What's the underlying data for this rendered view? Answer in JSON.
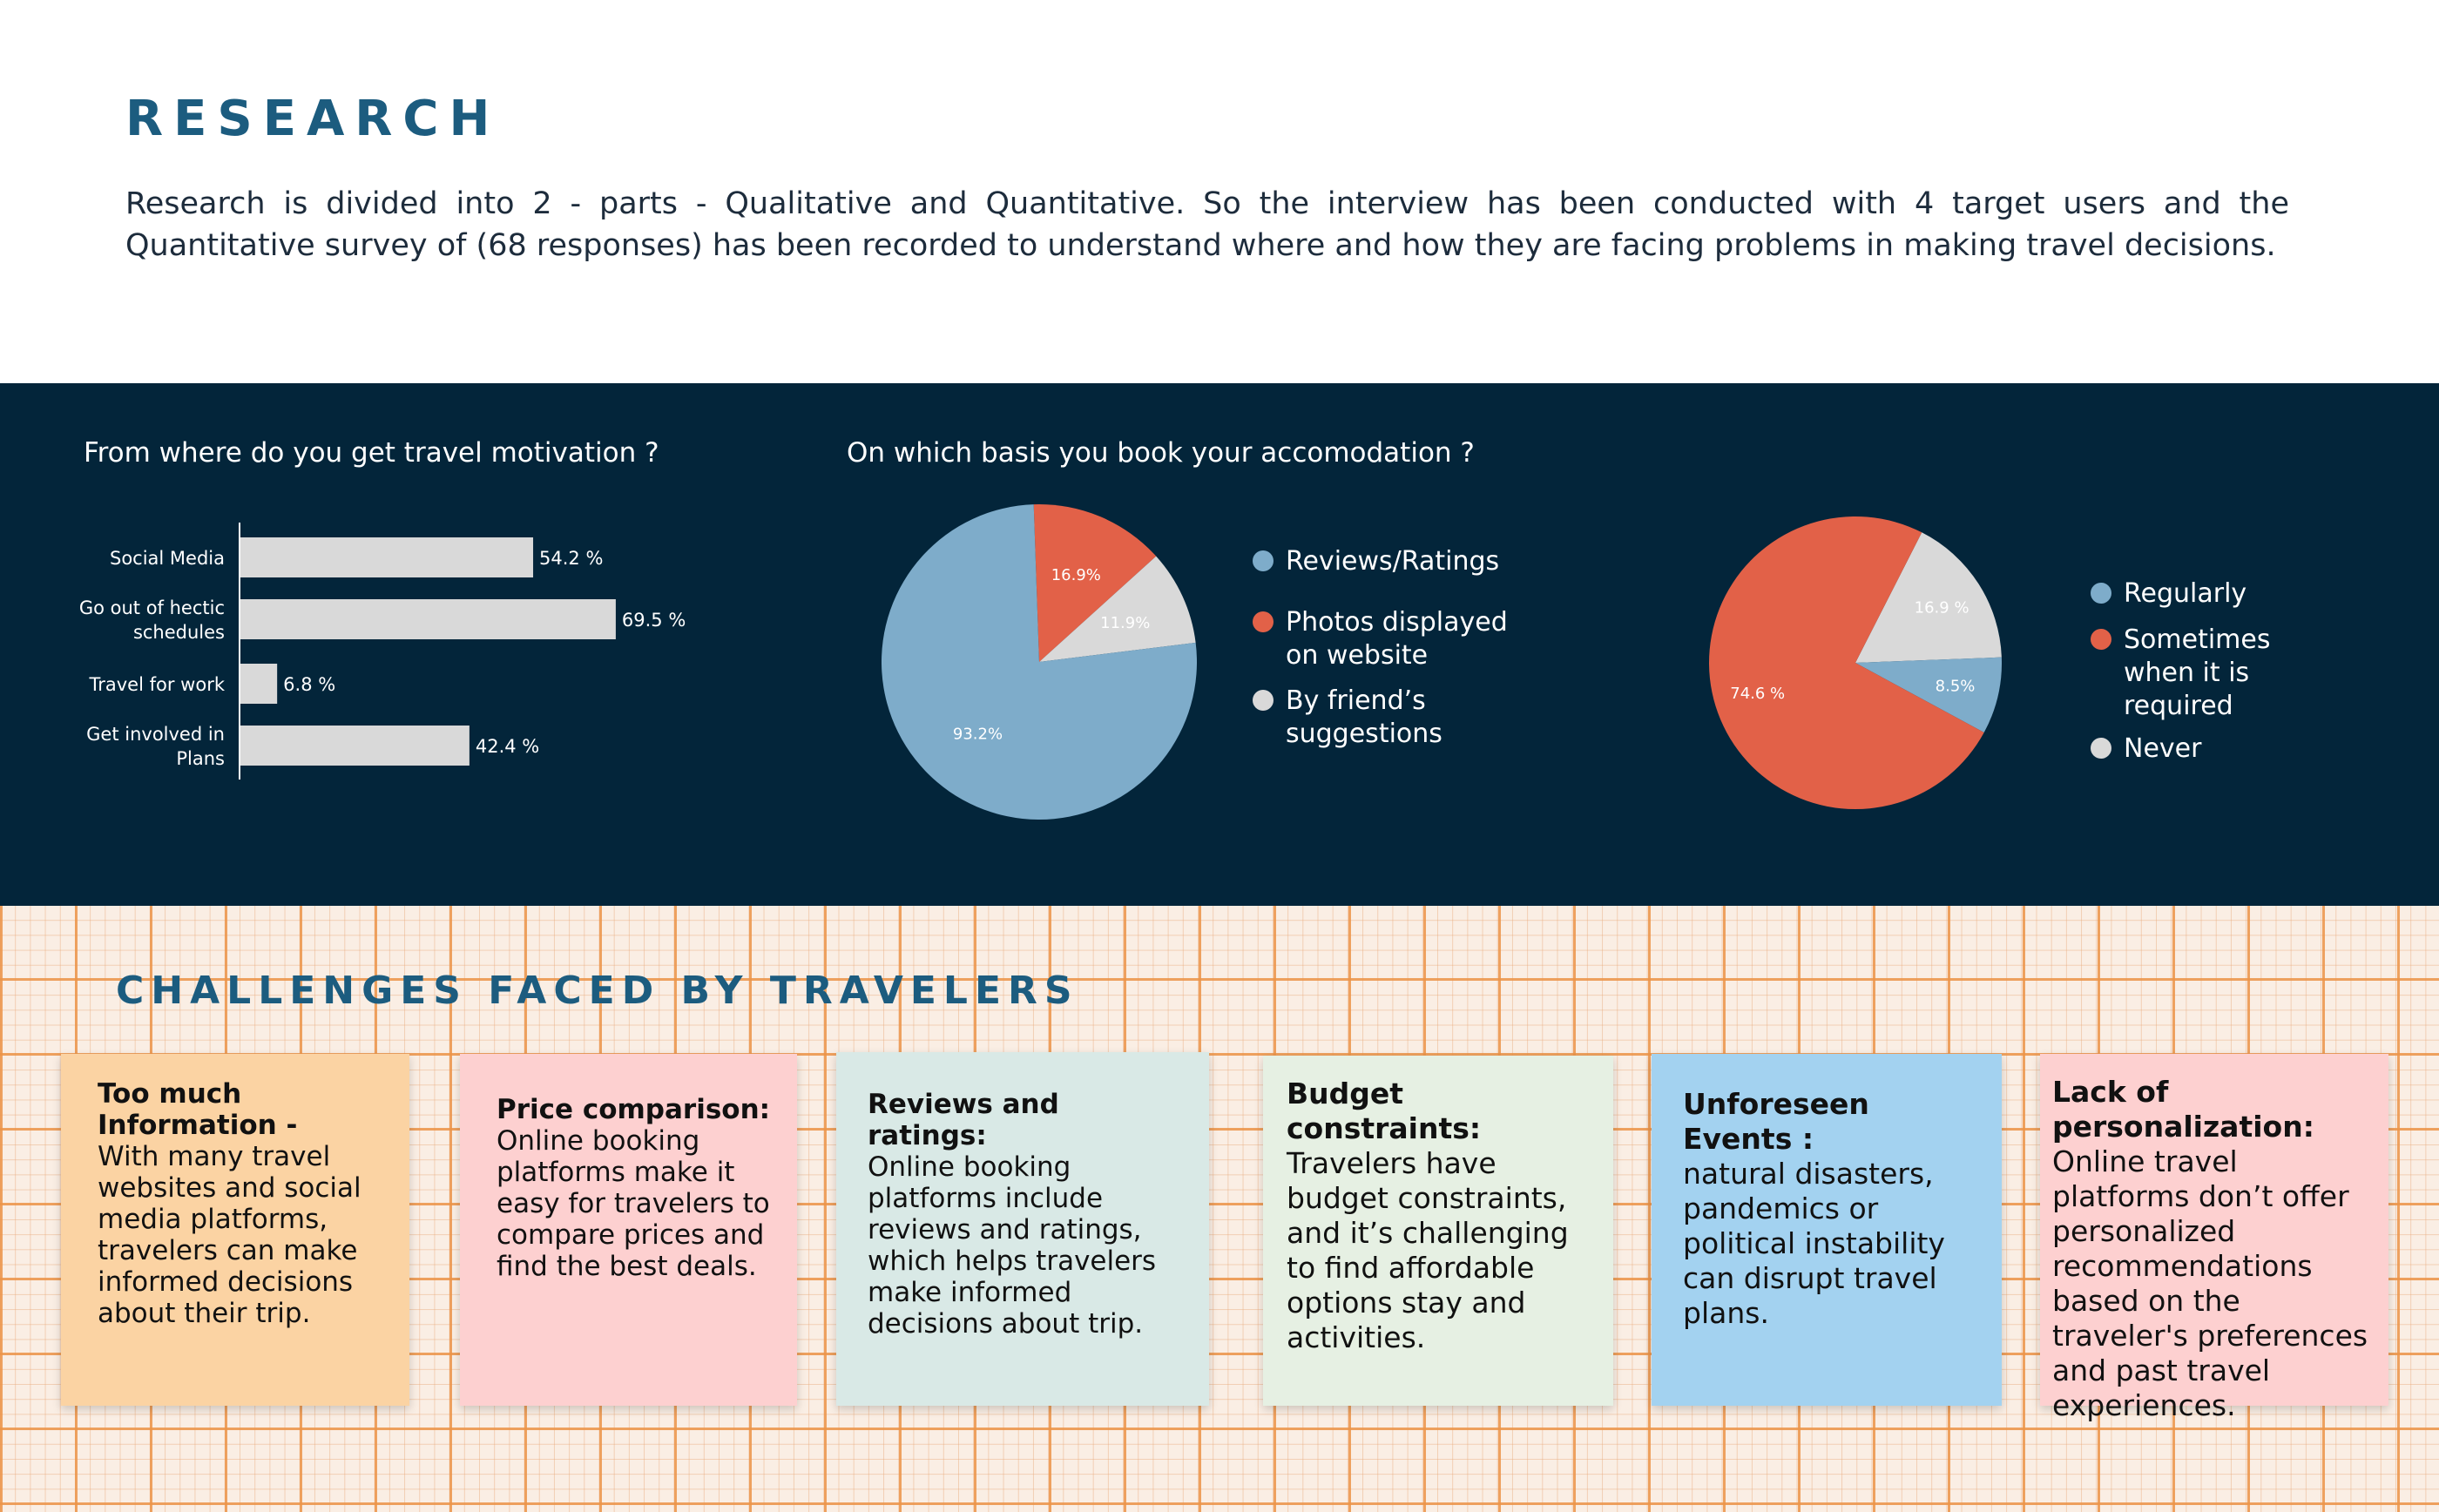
{
  "research": {
    "title": "RESEARCH",
    "description": "Research is divided into 2 - parts - Qualitative and Quantitative. So the interview has been conducted with 4 target users and the Quantitative survey of (68 responses) has been recorded to understand where and how they are facing problems in making travel decisions."
  },
  "colors": {
    "band": "#03253a",
    "blue": "#7eacca",
    "red": "#e26148",
    "grey": "#d9d9d9",
    "accent": "#1c5c7f"
  },
  "chart_data": [
    {
      "type": "bar",
      "orientation": "horizontal",
      "title": "From where do you get travel motivation ?",
      "categories": [
        "Social Media",
        "Go out of hectic schedules",
        "Travel for work",
        "Get involved in Plans"
      ],
      "category_lines": [
        [
          "Social Media"
        ],
        [
          "Go out of hectic",
          "schedules"
        ],
        [
          "Travel for work"
        ],
        [
          "Get involved in",
          "Plans"
        ]
      ],
      "values": [
        54.2,
        69.5,
        6.8,
        42.4
      ],
      "value_labels": [
        "54.2 %",
        "69.5 %",
        "6.8 %",
        "42.4 %"
      ],
      "xlim": [
        0,
        100
      ]
    },
    {
      "type": "pie",
      "title": "On which basis you book your accomodation ?",
      "labels": [
        "Reviews/Ratings",
        "Photos displayed on website",
        "By friend’s suggestions"
      ],
      "legend_lines": [
        [
          "Reviews/Ratings"
        ],
        [
          "Photos displayed",
          "on website"
        ],
        [
          "By friend’s",
          "suggestions"
        ]
      ],
      "values": [
        93.2,
        16.9,
        11.9
      ],
      "value_labels": [
        "93.2%",
        "16.9%",
        "11.9%"
      ],
      "colors": [
        "#7eacca",
        "#e26148",
        "#d9d9d9"
      ],
      "legend_position": "right"
    },
    {
      "type": "pie",
      "title": "",
      "labels": [
        "Regularly",
        "Sometimes when it is required",
        "Never"
      ],
      "legend_lines": [
        [
          "Regularly"
        ],
        [
          "Sometimes",
          "when it is",
          "required"
        ],
        [
          "Never"
        ]
      ],
      "legend_colors": [
        "#7eacca",
        "#e26148",
        "#d9d9d9"
      ],
      "slices": [
        {
          "value": 16.9,
          "label": "16.9 %",
          "color": "#d9d9d9"
        },
        {
          "value": 8.5,
          "label": "8.5%",
          "color": "#7eacca"
        },
        {
          "value": 74.6,
          "label": "74.6 %",
          "color": "#e26148"
        }
      ],
      "legend_position": "right"
    }
  ],
  "challenges": {
    "title": "CHALLENGES FACED BY TRAVELERS",
    "notes": [
      {
        "title": "Too much Information -",
        "body": "With many travel websites and social media platforms, travelers can make informed decisions about their trip.",
        "color": "#fbd3a3"
      },
      {
        "title": "Price comparison:",
        "body": "Online booking platforms make it easy for travelers to compare prices and find the best deals.",
        "color": "#fdd0d0"
      },
      {
        "title": "Reviews and ratings:",
        "body": "Online booking platforms include reviews and ratings, which helps travelers make informed decisions about trip.",
        "color": "#d9e9e6"
      },
      {
        "title": "Budget constraints:",
        "body": "Travelers have budget constraints, and it’s challenging to find affordable options stay and activities.",
        "color": "#e6f0e3"
      },
      {
        "title": "Unforeseen Events :",
        "body": "natural disasters, pandemics or political instability can disrupt travel plans.",
        "color": "#a3d2f0"
      },
      {
        "title": "Lack of personalization:",
        "body": "Online travel platforms don’t offer personalized recommendations based on the traveler's preferences and past travel experiences.",
        "color": "#fdd0d0"
      }
    ]
  }
}
